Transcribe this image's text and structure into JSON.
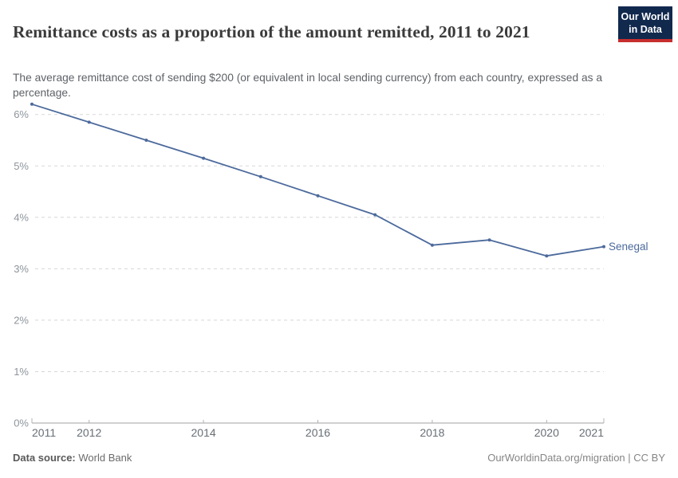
{
  "header": {
    "title": "Remittance costs as a proportion of the amount remitted, 2011 to 2021",
    "subtitle": "The average remittance cost of sending $200 (or equivalent in local sending currency) from each country, expressed as a percentage."
  },
  "logo": {
    "line1": "Our World",
    "line2": "in Data",
    "bg_color": "#12294e",
    "accent_color": "#c72e2e"
  },
  "chart_data": {
    "type": "line",
    "title": "Remittance costs as a proportion of the amount remitted, 2011 to 2021",
    "x": [
      2011,
      2012,
      2013,
      2014,
      2015,
      2016,
      2017,
      2018,
      2019,
      2020,
      2021
    ],
    "series": [
      {
        "name": "Senegal",
        "color": "#4c6a9c",
        "values": [
          6.2,
          5.85,
          5.5,
          5.15,
          4.79,
          4.42,
          4.05,
          3.46,
          3.56,
          3.25,
          3.43
        ]
      }
    ],
    "ylim": [
      0,
      6
    ],
    "ylabel": "",
    "xlabel": "",
    "yticks": [
      {
        "value": 0,
        "label": "0%"
      },
      {
        "value": 1,
        "label": "1%"
      },
      {
        "value": 2,
        "label": "2%"
      },
      {
        "value": 3,
        "label": "3%"
      },
      {
        "value": 4,
        "label": "4%"
      },
      {
        "value": 5,
        "label": "5%"
      },
      {
        "value": 6,
        "label": "6%"
      }
    ],
    "xticks": [
      {
        "value": 2011,
        "label": "2011"
      },
      {
        "value": 2012,
        "label": "2012"
      },
      {
        "value": 2014,
        "label": "2014"
      },
      {
        "value": 2016,
        "label": "2016"
      },
      {
        "value": 2018,
        "label": "2018"
      },
      {
        "value": 2020,
        "label": "2020"
      },
      {
        "value": 2021,
        "label": "2021"
      }
    ],
    "grid": "horizontal-dashed",
    "legend_position": "end-of-line-label",
    "colors": {
      "gridline": "#d7d7d7",
      "axis_line": "#a0a0a0",
      "tick": "#b3b3b3",
      "y_tick_label": "#8e959c",
      "x_tick_label": "#686f76"
    }
  },
  "footer": {
    "datasource_label": "Data source:",
    "datasource_value": "World Bank",
    "credit": "OurWorldinData.org/migration | CC BY"
  }
}
